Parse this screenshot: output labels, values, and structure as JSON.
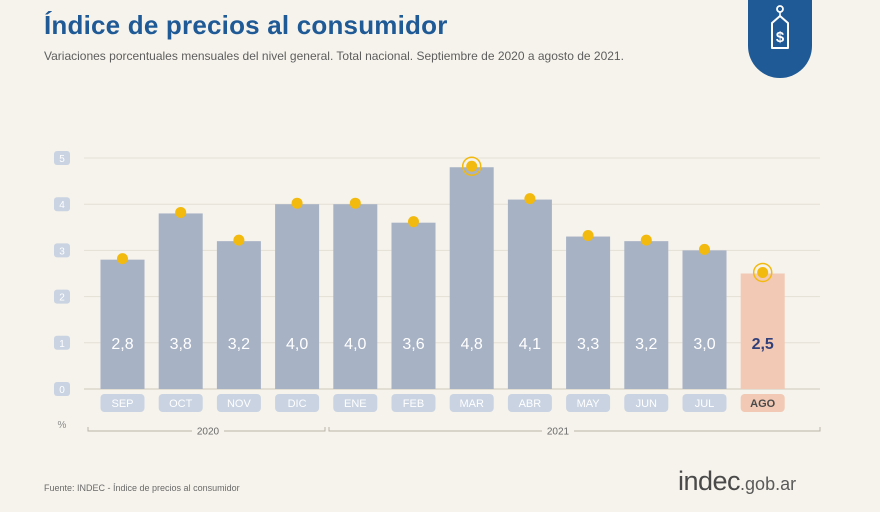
{
  "header": {
    "title": "Índice de precios al consumidor",
    "subtitle": "Variaciones porcentuales mensuales del nivel general. Total nacional. Septiembre de 2020 a agosto de 2021."
  },
  "footer": {
    "source": "Fuente: INDEC - Índice de precios al consumidor",
    "brand_main": "indec",
    "brand_domain": ".gob.ar"
  },
  "badge": {
    "icon": "price-tag-dollar-icon",
    "color": "#1f5a96"
  },
  "colors": {
    "bar": "#a7b2c5",
    "bar_highlight": "#f2c9b4",
    "label_box": "#c9d3e2",
    "label_box_highlight": "#f2c9b4",
    "dot": "#f2b90f",
    "title": "#1f5a96",
    "value_text": "#ffffff",
    "value_text_highlight": "#32407a"
  },
  "chart_data": {
    "type": "bar",
    "categories": [
      "SEP",
      "OCT",
      "NOV",
      "DIC",
      "ENE",
      "FEB",
      "MAR",
      "ABR",
      "MAY",
      "JUN",
      "JUL",
      "AGO"
    ],
    "values": [
      2.8,
      3.8,
      3.2,
      4.0,
      4.0,
      3.6,
      4.8,
      4.1,
      3.3,
      3.2,
      3.0,
      2.5
    ],
    "value_labels": [
      "2,8",
      "3,8",
      "3,2",
      "4,0",
      "4,0",
      "3,6",
      "4,8",
      "4,1",
      "3,3",
      "3,2",
      "3,0",
      "2,5"
    ],
    "highlight_index": 11,
    "ringed_indices": [
      6,
      11
    ],
    "y_ticks": [
      "0",
      "1",
      "2",
      "3",
      "4",
      "5"
    ],
    "ylim": [
      0,
      5
    ],
    "unit_label": "%",
    "year_groups": [
      {
        "label": "2020",
        "from": 0,
        "to": 3
      },
      {
        "label": "2021",
        "from": 4,
        "to": 11
      }
    ],
    "grid": true,
    "legend": "none"
  }
}
